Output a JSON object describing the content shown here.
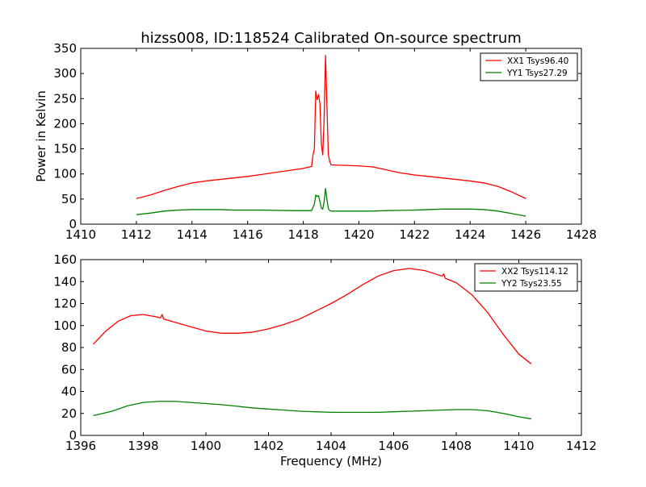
{
  "chart_data": [
    {
      "type": "line",
      "title": "hizss008, ID:118524 Calibrated On-source spectrum",
      "xlabel": "",
      "ylabel": "Power in Kelvin",
      "xlim": [
        1410,
        1428
      ],
      "ylim": [
        0,
        350
      ],
      "xticks": [
        "1410",
        "1412",
        "1414",
        "1416",
        "1418",
        "1420",
        "1422",
        "1424",
        "1426",
        "1428"
      ],
      "yticks": [
        "0",
        "50",
        "100",
        "150",
        "200",
        "250",
        "300",
        "350"
      ],
      "grid": false,
      "legend_position": "top-right",
      "series": [
        {
          "name": "XX1 Tsys96.40",
          "color": "#ff0000",
          "points": [
            [
              1412.0,
              51
            ],
            [
              1412.5,
              58
            ],
            [
              1413.0,
              67
            ],
            [
              1413.5,
              75
            ],
            [
              1414.0,
              82
            ],
            [
              1414.5,
              86
            ],
            [
              1415.0,
              89
            ],
            [
              1415.5,
              92
            ],
            [
              1416.0,
              95
            ],
            [
              1416.5,
              99
            ],
            [
              1417.0,
              103
            ],
            [
              1417.5,
              107
            ],
            [
              1418.0,
              111
            ],
            [
              1418.3,
              115
            ],
            [
              1418.35,
              138
            ],
            [
              1418.4,
              150
            ],
            [
              1418.45,
              265
            ],
            [
              1418.5,
              248
            ],
            [
              1418.55,
              258
            ],
            [
              1418.6,
              240
            ],
            [
              1418.65,
              160
            ],
            [
              1418.7,
              138
            ],
            [
              1418.75,
              210
            ],
            [
              1418.8,
              336
            ],
            [
              1418.85,
              240
            ],
            [
              1418.9,
              140
            ],
            [
              1418.95,
              125
            ],
            [
              1419.0,
              118
            ],
            [
              1419.5,
              117
            ],
            [
              1420.0,
              116
            ],
            [
              1420.5,
              114
            ],
            [
              1421.0,
              108
            ],
            [
              1421.5,
              102
            ],
            [
              1422.0,
              98
            ],
            [
              1422.5,
              95
            ],
            [
              1423.0,
              92
            ],
            [
              1423.5,
              89
            ],
            [
              1424.0,
              86
            ],
            [
              1424.5,
              82
            ],
            [
              1425.0,
              75
            ],
            [
              1425.5,
              64
            ],
            [
              1426.0,
              51
            ]
          ]
        },
        {
          "name": "YY1 Tsys27.29",
          "color": "#008000",
          "points": [
            [
              1412.0,
              19
            ],
            [
              1412.5,
              22
            ],
            [
              1413.0,
              26
            ],
            [
              1413.5,
              28
            ],
            [
              1414.0,
              29
            ],
            [
              1414.5,
              29
            ],
            [
              1415.0,
              29
            ],
            [
              1415.5,
              28
            ],
            [
              1416.0,
              28
            ],
            [
              1416.5,
              28
            ],
            [
              1417.0,
              27.5
            ],
            [
              1417.5,
              27
            ],
            [
              1418.0,
              27
            ],
            [
              1418.3,
              27
            ],
            [
              1418.4,
              40
            ],
            [
              1418.45,
              58
            ],
            [
              1418.5,
              55
            ],
            [
              1418.55,
              57
            ],
            [
              1418.6,
              45
            ],
            [
              1418.65,
              32
            ],
            [
              1418.7,
              30
            ],
            [
              1418.75,
              45
            ],
            [
              1418.8,
              71
            ],
            [
              1418.85,
              50
            ],
            [
              1418.9,
              31
            ],
            [
              1418.95,
              27
            ],
            [
              1419.0,
              26
            ],
            [
              1419.5,
              26
            ],
            [
              1420.0,
              26
            ],
            [
              1420.5,
              26
            ],
            [
              1421.0,
              27
            ],
            [
              1421.5,
              27.5
            ],
            [
              1422.0,
              28
            ],
            [
              1422.5,
              29
            ],
            [
              1423.0,
              30
            ],
            [
              1423.5,
              30
            ],
            [
              1424.0,
              30
            ],
            [
              1424.5,
              29
            ],
            [
              1425.0,
              26
            ],
            [
              1425.5,
              21
            ],
            [
              1426.0,
              16
            ]
          ]
        }
      ]
    },
    {
      "type": "line",
      "title": "",
      "xlabel": "Frequency (MHz)",
      "ylabel": "",
      "xlim": [
        1396,
        1412
      ],
      "ylim": [
        0,
        160
      ],
      "xticks": [
        "1396",
        "1398",
        "1400",
        "1402",
        "1404",
        "1406",
        "1408",
        "1410",
        "1412"
      ],
      "yticks": [
        "0",
        "20",
        "40",
        "60",
        "80",
        "100",
        "120",
        "140",
        "160"
      ],
      "grid": false,
      "legend_position": "top-right",
      "series": [
        {
          "name": "XX2 Tsys114.12",
          "color": "#ff0000",
          "points": [
            [
              1396.4,
              83
            ],
            [
              1396.8,
              95
            ],
            [
              1397.2,
              104
            ],
            [
              1397.6,
              109
            ],
            [
              1398.0,
              110
            ],
            [
              1398.4,
              108
            ],
            [
              1398.55,
              107
            ],
            [
              1398.6,
              110
            ],
            [
              1398.65,
              106
            ],
            [
              1399.0,
              103
            ],
            [
              1399.5,
              99
            ],
            [
              1400.0,
              95
            ],
            [
              1400.5,
              93
            ],
            [
              1401.0,
              93
            ],
            [
              1401.5,
              94
            ],
            [
              1402.0,
              97
            ],
            [
              1402.5,
              101
            ],
            [
              1403.0,
              106
            ],
            [
              1403.5,
              113
            ],
            [
              1404.0,
              120
            ],
            [
              1404.5,
              128
            ],
            [
              1405.0,
              137
            ],
            [
              1405.5,
              145
            ],
            [
              1406.0,
              150
            ],
            [
              1406.5,
              152
            ],
            [
              1407.0,
              150
            ],
            [
              1407.55,
              145
            ],
            [
              1407.6,
              147
            ],
            [
              1407.65,
              143
            ],
            [
              1408.0,
              139
            ],
            [
              1408.5,
              128
            ],
            [
              1409.0,
              112
            ],
            [
              1409.5,
              92
            ],
            [
              1410.0,
              74
            ],
            [
              1410.4,
              65
            ]
          ]
        },
        {
          "name": "YY2 Tsys23.55",
          "color": "#008000",
          "points": [
            [
              1396.4,
              18
            ],
            [
              1397.0,
              22
            ],
            [
              1397.5,
              27
            ],
            [
              1398.0,
              30
            ],
            [
              1398.5,
              31
            ],
            [
              1399.0,
              31
            ],
            [
              1399.5,
              30
            ],
            [
              1400.0,
              29
            ],
            [
              1400.5,
              28
            ],
            [
              1401.0,
              26.5
            ],
            [
              1401.5,
              25
            ],
            [
              1402.0,
              24
            ],
            [
              1402.5,
              23
            ],
            [
              1403.0,
              22
            ],
            [
              1403.5,
              21.5
            ],
            [
              1404.0,
              21
            ],
            [
              1404.5,
              21
            ],
            [
              1405.0,
              21
            ],
            [
              1405.5,
              21
            ],
            [
              1406.0,
              21.5
            ],
            [
              1406.5,
              22
            ],
            [
              1407.0,
              22.5
            ],
            [
              1407.5,
              23
            ],
            [
              1408.0,
              23.5
            ],
            [
              1408.5,
              23.5
            ],
            [
              1409.0,
              22.5
            ],
            [
              1409.5,
              20
            ],
            [
              1410.0,
              17
            ],
            [
              1410.4,
              15
            ]
          ]
        }
      ]
    }
  ]
}
